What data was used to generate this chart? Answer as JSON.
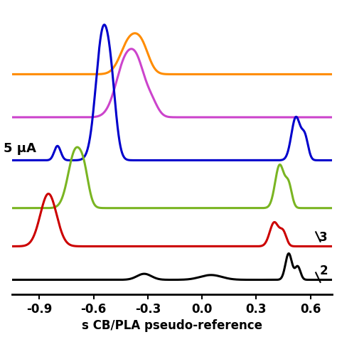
{
  "x_min": -1.05,
  "x_max": 0.72,
  "x_ticks": [
    -0.9,
    -0.6,
    -0.3,
    0.0,
    0.3,
    0.6
  ],
  "xlabel": "s CB/PLA pseudo-reference",
  "ylabel_text": "5 μA",
  "line_colors": [
    "#000000",
    "#cc0000",
    "#7ab522",
    "#0000cc",
    "#cc44cc",
    "#ff8c00"
  ],
  "background_color": "#ffffff",
  "linewidth": 2.2
}
